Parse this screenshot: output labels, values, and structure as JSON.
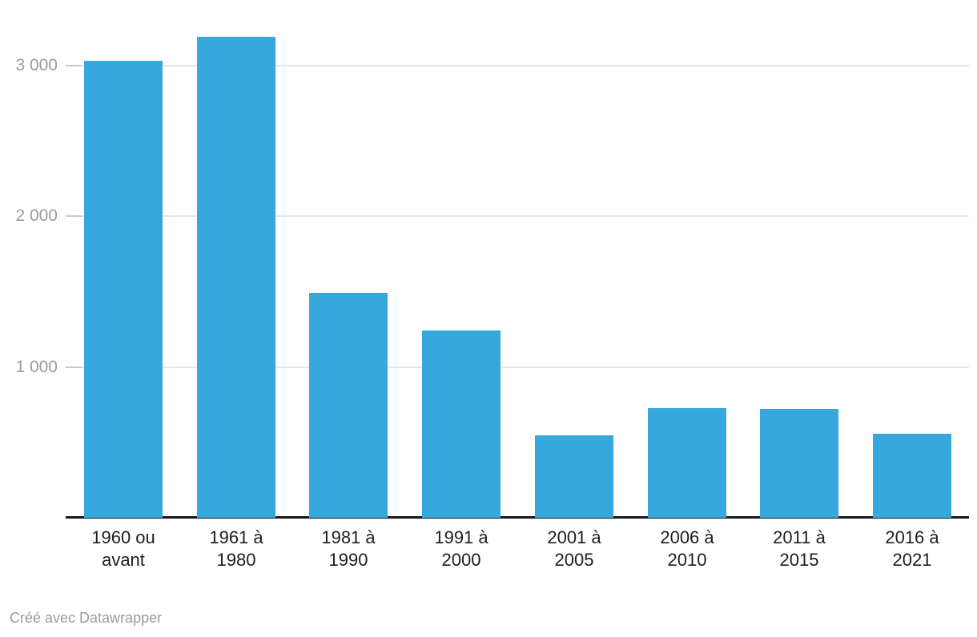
{
  "chart_data": {
    "type": "bar",
    "categories": [
      "1960 ou\navant",
      "1961 à\n1980",
      "1981 à\n1990",
      "1991 à\n2000",
      "2001 à\n2005",
      "2006 à\n2010",
      "2011 à\n2015",
      "2016 à\n2021"
    ],
    "values": [
      3030,
      3190,
      1490,
      1240,
      545,
      730,
      720,
      555
    ],
    "title": "",
    "xlabel": "",
    "ylabel": "",
    "ylim": [
      0,
      3400
    ],
    "yticks": [
      {
        "value": 1000,
        "label": "1 000"
      },
      {
        "value": 2000,
        "label": "2 000"
      },
      {
        "value": 3000,
        "label": "3 000"
      }
    ],
    "grid": true,
    "legend_position": "none",
    "bar_color": "#37a8de"
  },
  "colors": {
    "bar": "#37a8de",
    "grid": "#e6e6e6",
    "tick": "#c9c9c9",
    "axis": "#18181a",
    "xlabel": "#1d1d1d",
    "ylabel": "#9b9b9b",
    "footer": "#9b9b9b"
  },
  "footer": {
    "attribution": "Créé avec Datawrapper"
  }
}
